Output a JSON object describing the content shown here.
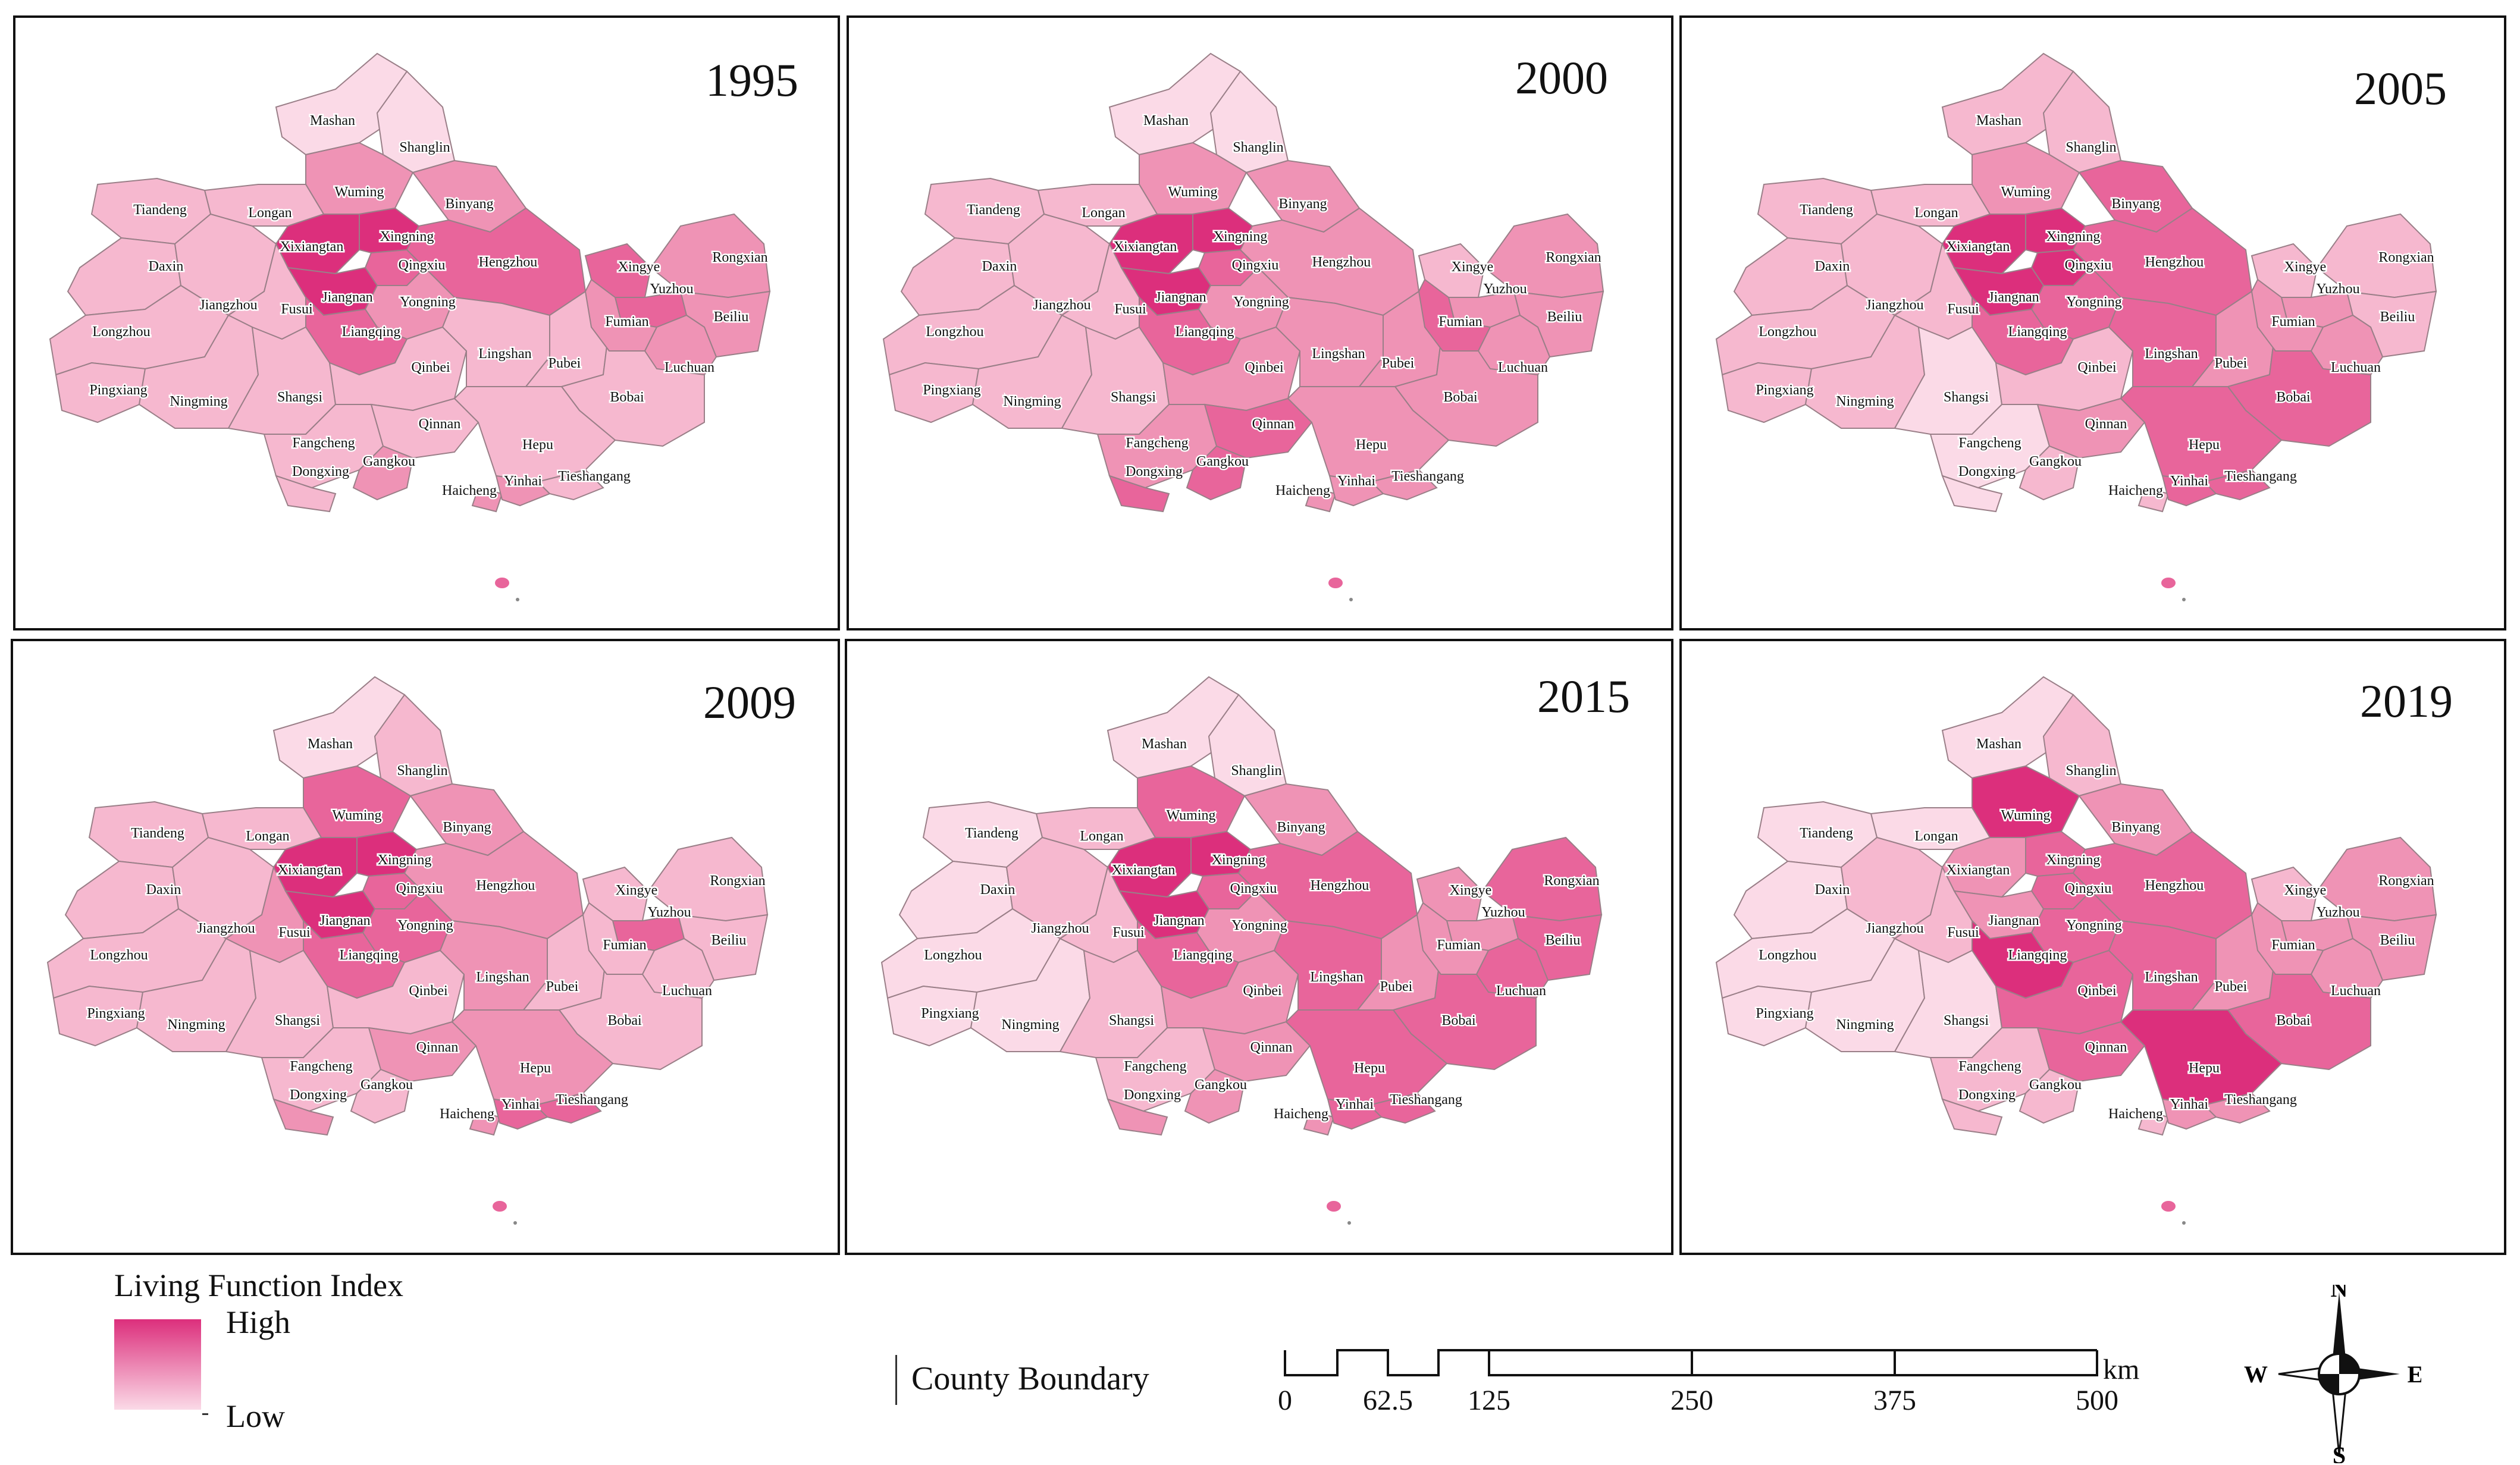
{
  "colors": {
    "lowest": "#fbdae7",
    "low": "#f6b8cf",
    "mid": "#ef93b5",
    "high": "#e8659b",
    "highest": "#dc2f7c",
    "border": "#9a7f88"
  },
  "panels": [
    {
      "year": "1995",
      "key": "p1995"
    },
    {
      "year": "2000",
      "key": "p2000"
    },
    {
      "year": "2005",
      "key": "p2005"
    },
    {
      "year": "2009",
      "key": "p2009"
    },
    {
      "year": "2015",
      "key": "p2015"
    },
    {
      "year": "2019",
      "key": "p2019"
    }
  ],
  "counties": [
    "Mashan",
    "Shanglin",
    "Wuming",
    "Binyang",
    "Longan",
    "Tiandeng",
    "Xixiangtan",
    "Xingning",
    "Qingxiu",
    "Hengzhou",
    "Daxin",
    "Jiangzhou",
    "Fusui",
    "Jiangnan",
    "Yongning",
    "Liangqing",
    "Longzhou",
    "Pingxiang",
    "Ningming",
    "Shangsi",
    "Qinbei",
    "Lingshan",
    "Pubei",
    "Bobai",
    "Fangcheng",
    "Qinnan",
    "Hepu",
    "Dongxing",
    "Gangkou",
    "Haicheng",
    "Yinhai",
    "Tieshangang",
    "Xingye",
    "Rongxian",
    "Yuzhou",
    "Beiliu",
    "Fumian",
    "Luchuan"
  ],
  "levels": {
    "p1995": {
      "Mashan": 0,
      "Shanglin": 0,
      "Wuming": 2,
      "Binyang": 2,
      "Longan": 1,
      "Tiandeng": 1,
      "Xixiangtan": 4,
      "Xingning": 4,
      "Qingxiu": 3,
      "Hengzhou": 3,
      "Daxin": 1,
      "Jiangzhou": 1,
      "Fusui": 1,
      "Jiangnan": 4,
      "Yongning": 2,
      "Liangqing": 3,
      "Longzhou": 1,
      "Pingxiang": 1,
      "Ningming": 1,
      "Shangsi": 1,
      "Qinbei": 1,
      "Lingshan": 1,
      "Pubei": 1,
      "Bobai": 1,
      "Fangcheng": 1,
      "Qinnan": 1,
      "Hepu": 1,
      "Dongxing": 1,
      "Gangkou": 2,
      "Haicheng": 2,
      "Yinhai": 2,
      "Tieshangang": 1,
      "Xingye": 3,
      "Rongxian": 2,
      "Yuzhou": 3,
      "Beiliu": 2,
      "Fumian": 2,
      "Luchuan": 2
    },
    "p2000": {
      "Mashan": 0,
      "Shanglin": 0,
      "Wuming": 2,
      "Binyang": 2,
      "Longan": 1,
      "Tiandeng": 1,
      "Xixiangtan": 4,
      "Xingning": 4,
      "Qingxiu": 3,
      "Hengzhou": 2,
      "Daxin": 1,
      "Jiangzhou": 1,
      "Fusui": 1,
      "Jiangnan": 4,
      "Yongning": 2,
      "Liangqing": 3,
      "Longzhou": 1,
      "Pingxiang": 1,
      "Ningming": 1,
      "Shangsi": 1,
      "Qinbei": 2,
      "Lingshan": 2,
      "Pubei": 2,
      "Bobai": 2,
      "Fangcheng": 2,
      "Qinnan": 3,
      "Hepu": 2,
      "Dongxing": 3,
      "Gangkou": 3,
      "Haicheng": 2,
      "Yinhai": 2,
      "Tieshangang": 2,
      "Xingye": 1,
      "Rongxian": 2,
      "Yuzhou": 2,
      "Beiliu": 2,
      "Fumian": 3,
      "Luchuan": 2
    },
    "p2005": {
      "Mashan": 1,
      "Shanglin": 1,
      "Wuming": 2,
      "Binyang": 3,
      "Longan": 1,
      "Tiandeng": 1,
      "Xixiangtan": 4,
      "Xingning": 4,
      "Qingxiu": 4,
      "Hengzhou": 3,
      "Daxin": 1,
      "Jiangzhou": 1,
      "Fusui": 1,
      "Jiangnan": 4,
      "Yongning": 3,
      "Liangqing": 3,
      "Longzhou": 1,
      "Pingxiang": 1,
      "Ningming": 1,
      "Shangsi": 0,
      "Qinbei": 1,
      "Lingshan": 3,
      "Pubei": 2,
      "Bobai": 3,
      "Fangcheng": 0,
      "Qinnan": 2,
      "Hepu": 3,
      "Dongxing": 0,
      "Gangkou": 1,
      "Haicheng": 1,
      "Yinhai": 3,
      "Tieshangang": 3,
      "Xingye": 1,
      "Rongxian": 1,
      "Yuzhou": 2,
      "Beiliu": 1,
      "Fumian": 2,
      "Luchuan": 2
    },
    "p2009": {
      "Mashan": 0,
      "Shanglin": 1,
      "Wuming": 3,
      "Binyang": 2,
      "Longan": 1,
      "Tiandeng": 1,
      "Xixiangtan": 4,
      "Xingning": 4,
      "Qingxiu": 3,
      "Hengzhou": 2,
      "Daxin": 1,
      "Jiangzhou": 1,
      "Fusui": 2,
      "Jiangnan": 4,
      "Yongning": 3,
      "Liangqing": 3,
      "Longzhou": 1,
      "Pingxiang": 1,
      "Ningming": 1,
      "Shangsi": 1,
      "Qinbei": 1,
      "Lingshan": 2,
      "Pubei": 1,
      "Bobai": 1,
      "Fangcheng": 1,
      "Qinnan": 2,
      "Hepu": 2,
      "Dongxing": 2,
      "Gangkou": 1,
      "Haicheng": 2,
      "Yinhai": 3,
      "Tieshangang": 3,
      "Xingye": 1,
      "Rongxian": 1,
      "Yuzhou": 3,
      "Beiliu": 1,
      "Fumian": 1,
      "Luchuan": 1
    },
    "p2015": {
      "Mashan": 0,
      "Shanglin": 0,
      "Wuming": 3,
      "Binyang": 2,
      "Longan": 1,
      "Tiandeng": 0,
      "Xixiangtan": 4,
      "Xingning": 4,
      "Qingxiu": 3,
      "Hengzhou": 3,
      "Daxin": 0,
      "Jiangzhou": 1,
      "Fusui": 1,
      "Jiangnan": 4,
      "Yongning": 2,
      "Liangqing": 3,
      "Longzhou": 0,
      "Pingxiang": 0,
      "Ningming": 0,
      "Shangsi": 1,
      "Qinbei": 2,
      "Lingshan": 3,
      "Pubei": 2,
      "Bobai": 3,
      "Fangcheng": 1,
      "Qinnan": 2,
      "Hepu": 3,
      "Dongxing": 2,
      "Gangkou": 2,
      "Haicheng": 2,
      "Yinhai": 3,
      "Tieshangang": 3,
      "Xingye": 2,
      "Rongxian": 3,
      "Yuzhou": 2,
      "Beiliu": 3,
      "Fumian": 2,
      "Luchuan": 3
    },
    "p2019": {
      "Mashan": 0,
      "Shanglin": 1,
      "Wuming": 4,
      "Binyang": 2,
      "Longan": 0,
      "Tiandeng": 0,
      "Xixiangtan": 2,
      "Xingning": 3,
      "Qingxiu": 3,
      "Hengzhou": 3,
      "Daxin": 0,
      "Jiangzhou": 1,
      "Fusui": 1,
      "Jiangnan": 2,
      "Yongning": 3,
      "Liangqing": 4,
      "Longzhou": 0,
      "Pingxiang": 0,
      "Ningming": 0,
      "Shangsi": 0,
      "Qinbei": 3,
      "Lingshan": 3,
      "Pubei": 2,
      "Bobai": 3,
      "Fangcheng": 1,
      "Qinnan": 3,
      "Hepu": 4,
      "Dongxing": 1,
      "Gangkou": 1,
      "Haicheng": 1,
      "Yinhai": 2,
      "Tieshangang": 2,
      "Xingye": 1,
      "Rongxian": 2,
      "Yuzhou": 2,
      "Beiliu": 2,
      "Fumian": 2,
      "Luchuan": 2
    }
  },
  "legend": {
    "title": "Living Function Index",
    "high": "High",
    "low": "Low",
    "boundary": "County Boundary"
  },
  "scale": {
    "ticks": [
      "0",
      "62.5",
      "125",
      "250",
      "375",
      "500"
    ],
    "unit": "km"
  },
  "compass": {
    "n": "N",
    "s": "S",
    "e": "E",
    "w": "W"
  }
}
